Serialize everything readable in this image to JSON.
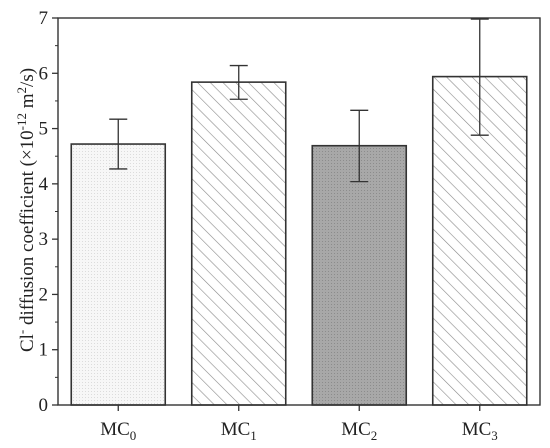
{
  "chart_data": {
    "type": "bar",
    "categories": [
      {
        "base": "MC",
        "sub": "0"
      },
      {
        "base": "MC",
        "sub": "1"
      },
      {
        "base": "MC",
        "sub": "2"
      },
      {
        "base": "MC",
        "sub": "3"
      }
    ],
    "values": [
      4.72,
      5.84,
      4.69,
      5.94
    ],
    "errors_upper": [
      5.17,
      6.14,
      5.33,
      6.98
    ],
    "errors_lower": [
      4.27,
      5.53,
      4.04,
      4.88
    ],
    "bar_styles": [
      "light-dotted",
      "hatch",
      "dark-dotted",
      "hatch"
    ],
    "ylim": [
      0,
      7
    ],
    "yticks": [
      0,
      1,
      2,
      3,
      4,
      5,
      6,
      7
    ],
    "ylabel": {
      "part1": "Cl",
      "sup1": "-",
      "part2": " diffusion coefficient (×10",
      "sup2": "-12",
      "part3": " m",
      "sup3": "2",
      "part4": "/s)"
    },
    "grid": false,
    "colors": {
      "axis": "#333333",
      "bar_stroke": "#333333",
      "light_fill": "#f4f4f4",
      "dark_fill": "#a3a3a3",
      "hatch": "#8a8a8a"
    }
  }
}
